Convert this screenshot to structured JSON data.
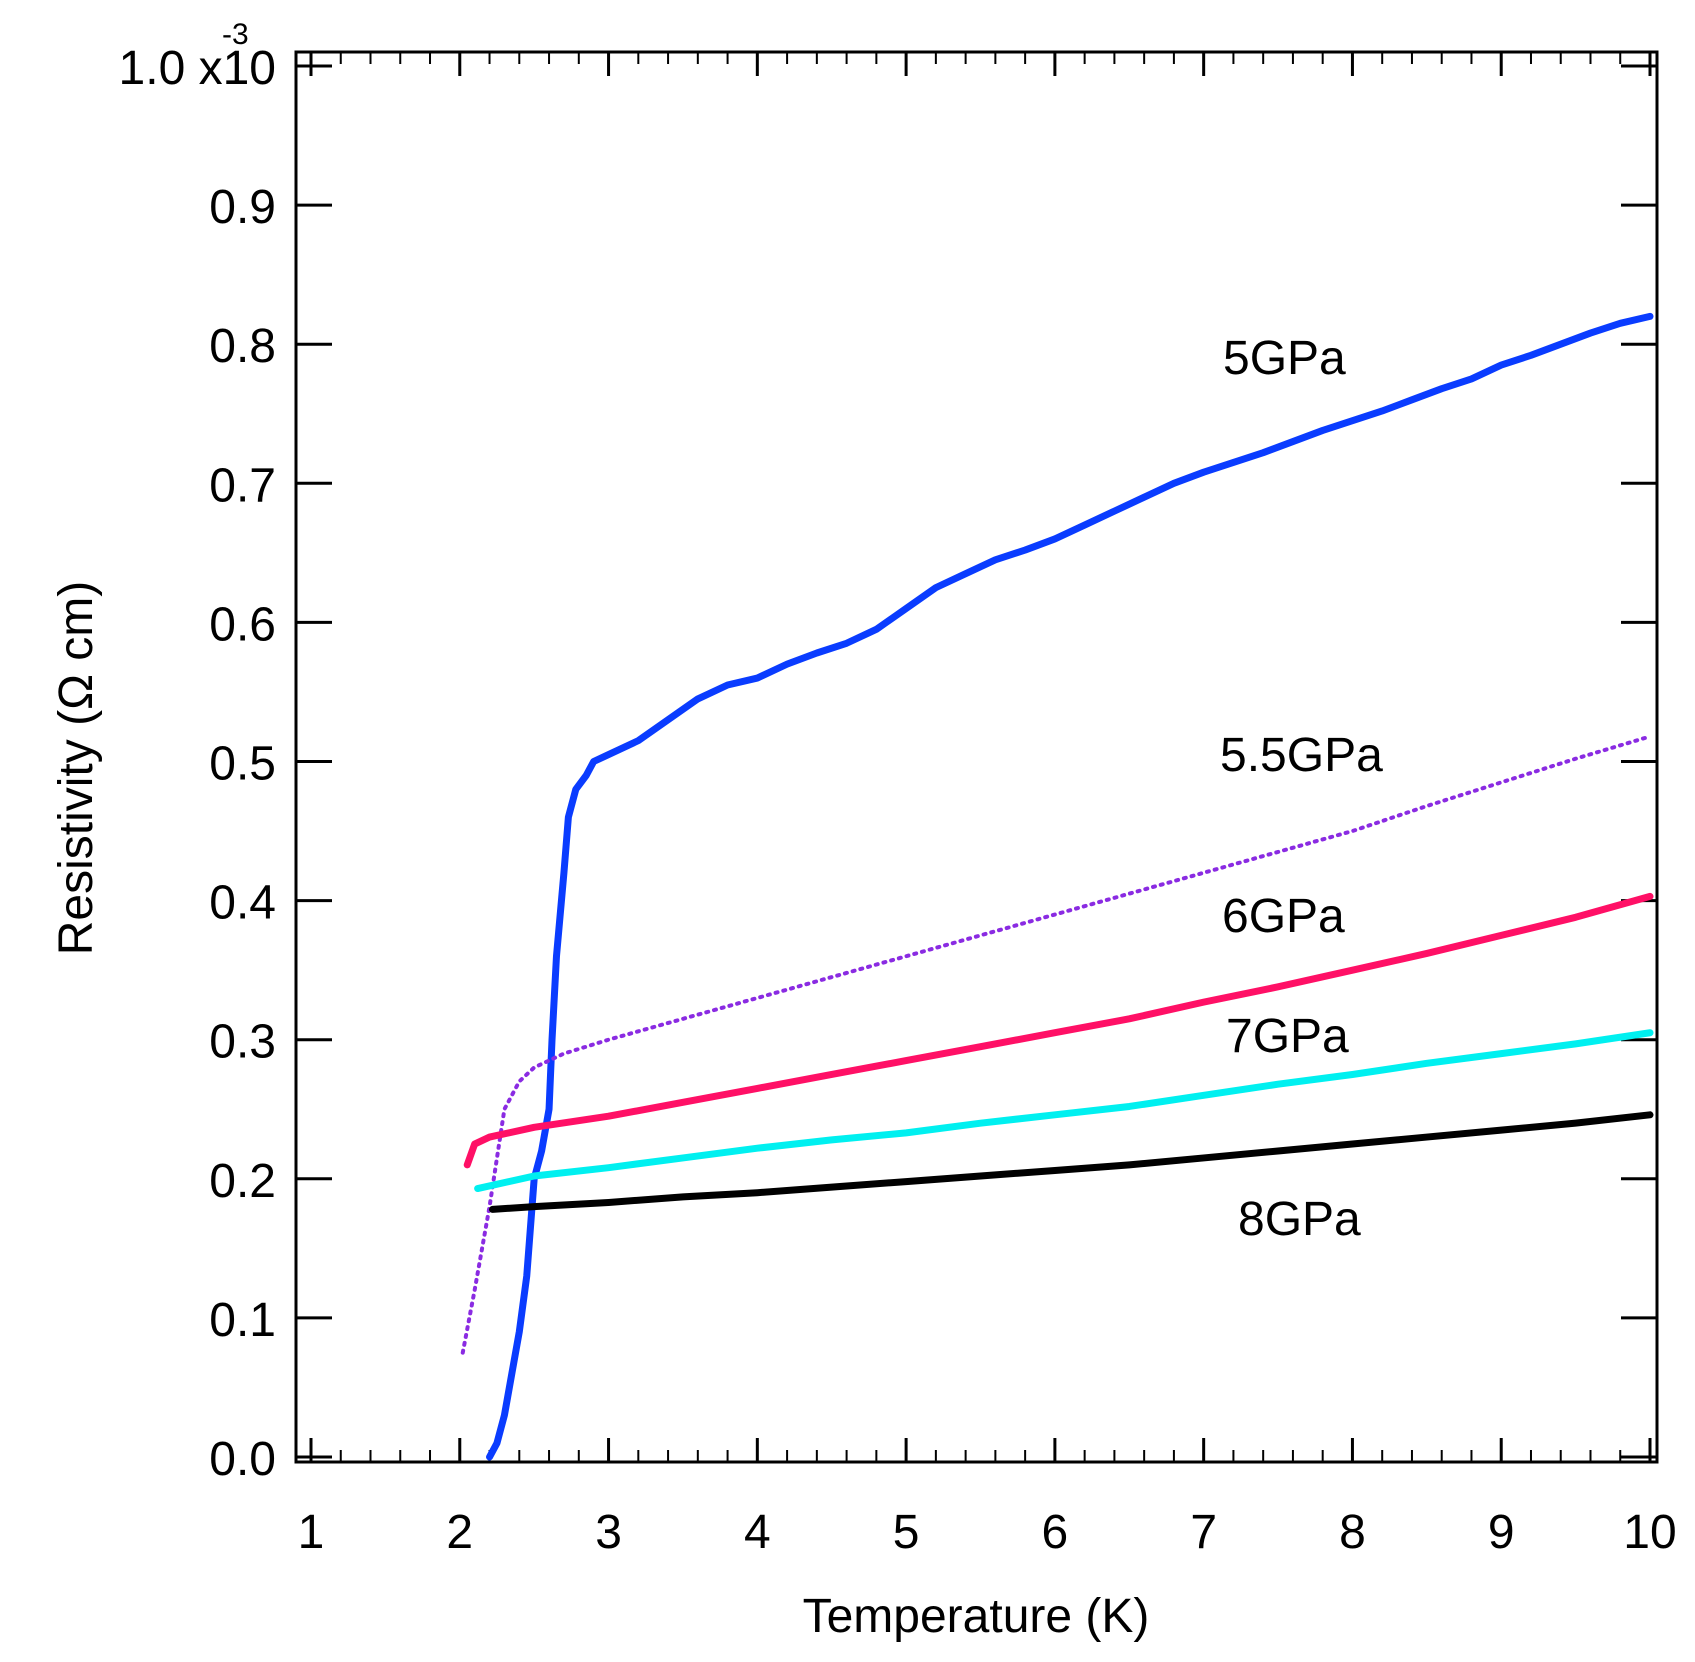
{
  "chart_data": {
    "type": "line",
    "title": "",
    "xlabel": "Temperature (K)",
    "ylabel": "Resistivity (Ω cm)",
    "xlim": [
      1,
      10
    ],
    "ylim": [
      0,
      0.001
    ],
    "x_ticks": [
      1,
      2,
      3,
      4,
      5,
      6,
      7,
      8,
      9,
      10
    ],
    "x_tick_labels": [
      "1",
      "2",
      "3",
      "4",
      "5",
      "6",
      "7",
      "8",
      "9",
      "10"
    ],
    "y_ticks": [
      0,
      0.0001,
      0.0002,
      0.0003,
      0.0004,
      0.0005,
      0.0006,
      0.0007,
      0.0008,
      0.0009,
      0.001
    ],
    "y_tick_labels": [
      "0.0",
      "0.1",
      "0.2",
      "0.3",
      "0.4",
      "0.5",
      "0.6",
      "0.7",
      "0.8",
      "0.9",
      "1.0 x10"
    ],
    "y_exponent": "-3",
    "grid": false,
    "series": [
      {
        "name": "5GPa",
        "color": "#0a3cff",
        "style": "line",
        "points": [
          [
            2.2,
            0.0
          ],
          [
            2.25,
            1e-05
          ],
          [
            2.3,
            3e-05
          ],
          [
            2.35,
            6e-05
          ],
          [
            2.4,
            9e-05
          ],
          [
            2.45,
            0.00013
          ],
          [
            2.5,
            0.0002
          ],
          [
            2.55,
            0.00022
          ],
          [
            2.6,
            0.00025
          ],
          [
            2.62,
            0.0003
          ],
          [
            2.65,
            0.00036
          ],
          [
            2.7,
            0.00042
          ],
          [
            2.73,
            0.00046
          ],
          [
            2.78,
            0.00048
          ],
          [
            2.85,
            0.00049
          ],
          [
            2.9,
            0.0005
          ],
          [
            3.0,
            0.000505
          ],
          [
            3.2,
            0.000515
          ],
          [
            3.4,
            0.00053
          ],
          [
            3.6,
            0.000545
          ],
          [
            3.8,
            0.000555
          ],
          [
            4.0,
            0.00056
          ],
          [
            4.2,
            0.00057
          ],
          [
            4.4,
            0.000578
          ],
          [
            4.6,
            0.000585
          ],
          [
            4.8,
            0.000595
          ],
          [
            5.0,
            0.00061
          ],
          [
            5.2,
            0.000625
          ],
          [
            5.4,
            0.000635
          ],
          [
            5.6,
            0.000645
          ],
          [
            5.8,
            0.000652
          ],
          [
            6.0,
            0.00066
          ],
          [
            6.2,
            0.00067
          ],
          [
            6.4,
            0.00068
          ],
          [
            6.6,
            0.00069
          ],
          [
            6.8,
            0.0007
          ],
          [
            7.0,
            0.000708
          ],
          [
            7.2,
            0.000715
          ],
          [
            7.4,
            0.000722
          ],
          [
            7.6,
            0.00073
          ],
          [
            7.8,
            0.000738
          ],
          [
            8.0,
            0.000745
          ],
          [
            8.2,
            0.000752
          ],
          [
            8.4,
            0.00076
          ],
          [
            8.6,
            0.000768
          ],
          [
            8.8,
            0.000775
          ],
          [
            9.0,
            0.000785
          ],
          [
            9.2,
            0.000792
          ],
          [
            9.4,
            0.0008
          ],
          [
            9.6,
            0.000808
          ],
          [
            9.8,
            0.000815
          ],
          [
            10.0,
            0.00082
          ]
        ]
      },
      {
        "name": "5.5GPa",
        "color": "#8a2be2",
        "style": "dotted",
        "points": [
          [
            2.02,
            7.5e-05
          ],
          [
            2.1,
            0.00012
          ],
          [
            2.2,
            0.00018
          ],
          [
            2.3,
            0.00025
          ],
          [
            2.4,
            0.00027
          ],
          [
            2.5,
            0.00028
          ],
          [
            2.7,
            0.00029
          ],
          [
            3.0,
            0.0003
          ],
          [
            3.5,
            0.000315
          ],
          [
            4.0,
            0.00033
          ],
          [
            4.5,
            0.000345
          ],
          [
            5.0,
            0.00036
          ],
          [
            5.5,
            0.000375
          ],
          [
            6.0,
            0.00039
          ],
          [
            6.5,
            0.000405
          ],
          [
            7.0,
            0.00042
          ],
          [
            7.5,
            0.000435
          ],
          [
            8.0,
            0.00045
          ],
          [
            8.5,
            0.000468
          ],
          [
            9.0,
            0.000485
          ],
          [
            9.5,
            0.000502
          ],
          [
            10.0,
            0.000518
          ]
        ]
      },
      {
        "name": "6GPa",
        "color": "#ff1066",
        "style": "line",
        "points": [
          [
            2.05,
            0.00021
          ],
          [
            2.1,
            0.000225
          ],
          [
            2.2,
            0.00023
          ],
          [
            2.5,
            0.000237
          ],
          [
            3.0,
            0.000245
          ],
          [
            3.5,
            0.000255
          ],
          [
            4.0,
            0.000265
          ],
          [
            4.5,
            0.000275
          ],
          [
            5.0,
            0.000285
          ],
          [
            5.5,
            0.000295
          ],
          [
            6.0,
            0.000305
          ],
          [
            6.5,
            0.000315
          ],
          [
            7.0,
            0.000327
          ],
          [
            7.5,
            0.000338
          ],
          [
            8.0,
            0.00035
          ],
          [
            8.5,
            0.000362
          ],
          [
            9.0,
            0.000375
          ],
          [
            9.5,
            0.000388
          ],
          [
            10.0,
            0.000403
          ]
        ]
      },
      {
        "name": "7GPa",
        "color": "#00f0f0",
        "style": "line",
        "points": [
          [
            2.12,
            0.000193
          ],
          [
            2.5,
            0.000202
          ],
          [
            3.0,
            0.000208
          ],
          [
            3.5,
            0.000215
          ],
          [
            4.0,
            0.000222
          ],
          [
            4.5,
            0.000228
          ],
          [
            5.0,
            0.000233
          ],
          [
            5.5,
            0.00024
          ],
          [
            6.0,
            0.000246
          ],
          [
            6.5,
            0.000252
          ],
          [
            7.0,
            0.00026
          ],
          [
            7.5,
            0.000268
          ],
          [
            8.0,
            0.000275
          ],
          [
            8.5,
            0.000283
          ],
          [
            9.0,
            0.00029
          ],
          [
            9.5,
            0.000297
          ],
          [
            10.0,
            0.000305
          ]
        ]
      },
      {
        "name": "8GPa",
        "color": "#000000",
        "style": "line",
        "points": [
          [
            2.22,
            0.000178
          ],
          [
            2.5,
            0.00018
          ],
          [
            3.0,
            0.000183
          ],
          [
            3.5,
            0.000187
          ],
          [
            4.0,
            0.00019
          ],
          [
            4.5,
            0.000194
          ],
          [
            5.0,
            0.000198
          ],
          [
            5.5,
            0.000202
          ],
          [
            6.0,
            0.000206
          ],
          [
            6.5,
            0.00021
          ],
          [
            7.0,
            0.000215
          ],
          [
            7.5,
            0.00022
          ],
          [
            8.0,
            0.000225
          ],
          [
            8.5,
            0.00023
          ],
          [
            9.0,
            0.000235
          ],
          [
            9.5,
            0.00024
          ],
          [
            10.0,
            0.000246
          ]
        ]
      }
    ],
    "annotations": [
      "5GPa",
      "5.5GPa",
      "6GPa",
      "7GPa",
      "8GPa"
    ]
  }
}
